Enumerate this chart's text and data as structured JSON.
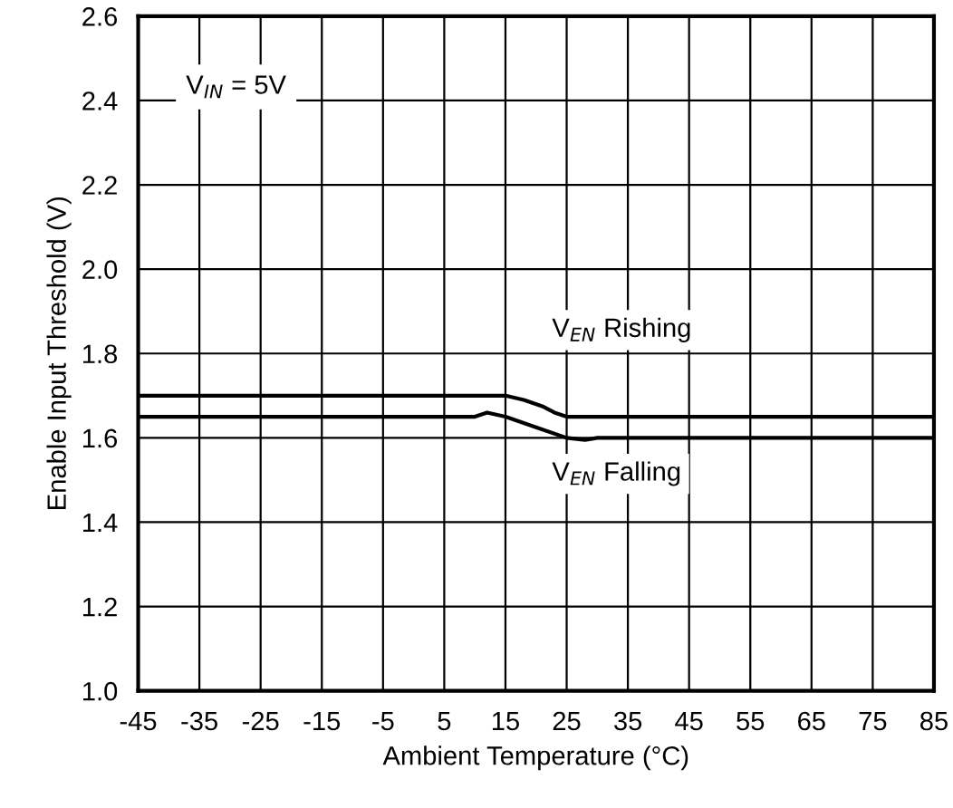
{
  "chart_data": {
    "type": "line",
    "xlabel": "Ambient Temperature (°C)",
    "ylabel": "Enable Input Threshold (V)",
    "annotations": [
      "V$_{IN}$ = 5V"
    ],
    "xlim": [
      -45,
      85
    ],
    "xticks": [
      -45,
      -35,
      -25,
      -15,
      -5,
      5,
      15,
      25,
      35,
      45,
      55,
      65,
      75,
      85
    ],
    "ylim": [
      1.0,
      2.6
    ],
    "yticks": [
      {
        "value": 1.0,
        "label": "1.0"
      },
      1.2,
      1.4,
      1.6,
      1.8,
      {
        "value": 2.0,
        "label": "2.0"
      },
      2.2,
      2.4,
      2.6
    ],
    "grid": true,
    "legend": false,
    "marker": "none",
    "line_style": "solid",
    "series": [
      {
        "name": "V$_{EN}$ Rishing",
        "color": "#000000",
        "x": [
          -45,
          15,
          18,
          21,
          23,
          25,
          85
        ],
        "values": [
          1.7,
          1.7,
          1.69,
          1.675,
          1.66,
          1.65,
          1.65
        ]
      },
      {
        "name": "V$_{EN}$ Falling",
        "color": "#000000",
        "x": [
          -45,
          10,
          12,
          15,
          20,
          25,
          28,
          30,
          85
        ],
        "values": [
          1.65,
          1.65,
          1.66,
          1.65,
          1.625,
          1.6,
          1.595,
          1.6,
          1.6
        ]
      }
    ]
  }
}
